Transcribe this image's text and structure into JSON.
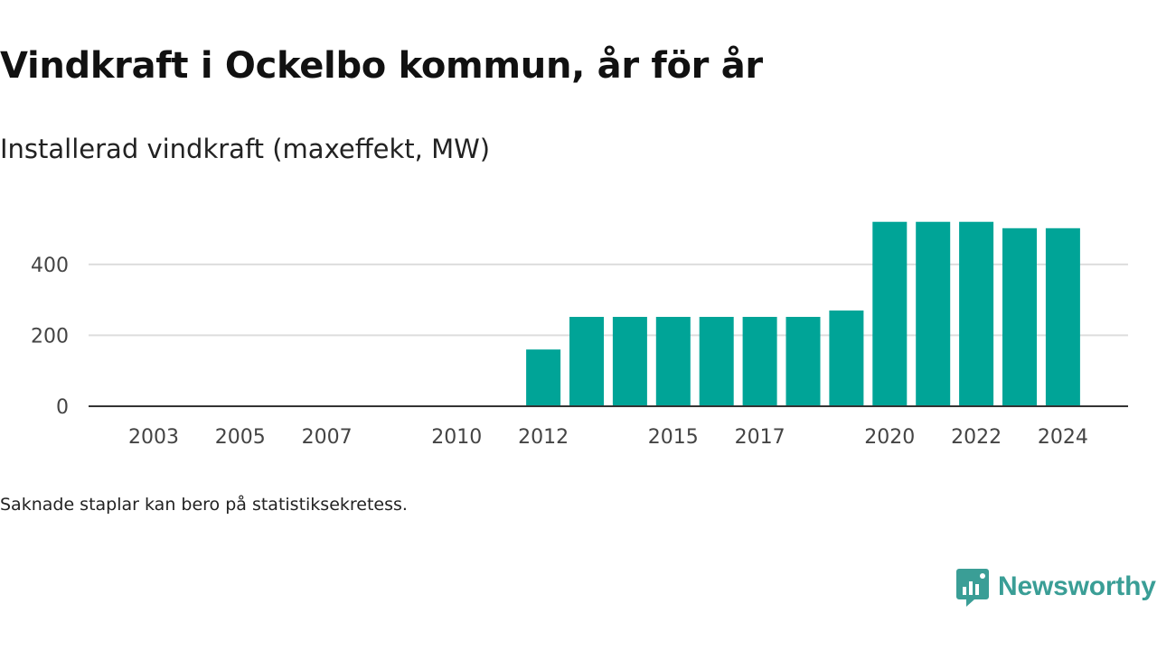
{
  "title": "Vindkraft i Ockelbo kommun, år för år",
  "subtitle": "Installerad vindkraft (maxeffekt, MW)",
  "footnote": "Saknade staplar kan bero på statistiksekretess.",
  "brand": {
    "name": "Newsworthy",
    "color": "#3a9e96",
    "icon": "newsworthy-logo-icon"
  },
  "colors": {
    "bar": "#00a497",
    "grid": "#dddddd",
    "axis": "#333333"
  },
  "chart_data": {
    "type": "bar",
    "title": "Vindkraft i Ockelbo kommun, år för år",
    "subtitle": "Installerad vindkraft (maxeffekt, MW)",
    "xlabel": "",
    "ylabel": "",
    "categories": [
      "2003",
      "2004",
      "2005",
      "2006",
      "2007",
      "2008",
      "2009",
      "2010",
      "2011",
      "2012",
      "2013",
      "2014",
      "2015",
      "2016",
      "2017",
      "2018",
      "2019",
      "2020",
      "2021",
      "2022",
      "2023",
      "2024"
    ],
    "x_tick_labels": [
      "2003",
      "2005",
      "2007",
      "2010",
      "2012",
      "2015",
      "2017",
      "2020",
      "2022",
      "2024"
    ],
    "values": [
      0,
      0,
      0,
      0,
      0,
      0,
      0,
      0,
      0,
      160,
      252,
      252,
      252,
      252,
      252,
      252,
      270,
      520,
      520,
      520,
      502,
      502
    ],
    "y_ticks": [
      0,
      200,
      400
    ],
    "ylim": [
      0,
      560
    ],
    "grid": true,
    "legend": "none"
  }
}
